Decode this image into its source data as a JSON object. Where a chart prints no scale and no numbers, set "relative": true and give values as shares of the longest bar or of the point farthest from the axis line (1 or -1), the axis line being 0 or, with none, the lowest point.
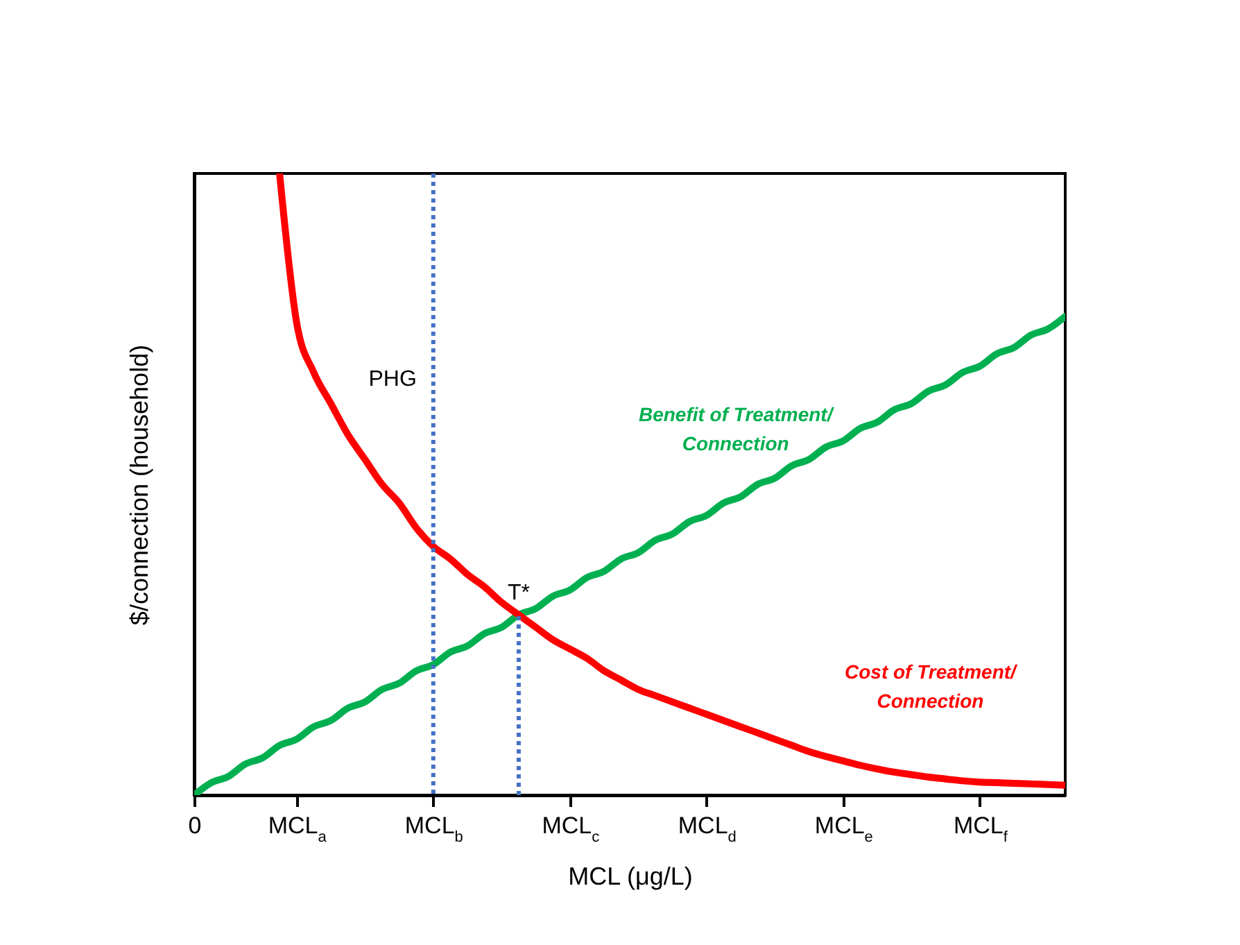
{
  "chart_data": {
    "type": "line",
    "relative": true,
    "xlabel": "MCL (μg/L)",
    "ylabel": "$/connection (household)",
    "categories": [
      "0",
      null,
      null,
      null,
      null,
      null,
      "MCL$_{a}$",
      null,
      null,
      null,
      null,
      null,
      null,
      null,
      "MCL$_{b}$",
      null,
      null,
      null,
      null,
      null,
      null,
      null,
      "MCL$_{c}$",
      null,
      null,
      null,
      null,
      null,
      null,
      null,
      "MCL$_{d}$",
      null,
      null,
      null,
      null,
      null,
      null,
      null,
      "MCL$_{e}$",
      null,
      null,
      null,
      null,
      null,
      null,
      null,
      "MCL$_{f}$",
      null,
      null,
      null,
      null,
      null
    ],
    "series": [
      {
        "name": "Benefit of Treatment/ Connection",
        "color": "#00b050",
        "values": [
          0,
          0.02,
          0.03,
          0.05,
          0.06,
          0.08,
          0.09,
          0.11,
          0.12,
          0.14,
          0.15,
          0.17,
          0.18,
          0.2,
          0.21,
          0.23,
          0.24,
          0.26,
          0.27,
          0.29,
          0.3,
          0.32,
          0.33,
          0.35,
          0.36,
          0.38,
          0.39,
          0.41,
          0.42,
          0.44,
          0.45,
          0.47,
          0.48,
          0.5,
          0.51,
          0.53,
          0.54,
          0.56,
          0.57,
          0.59,
          0.6,
          0.62,
          0.63,
          0.65,
          0.66,
          0.68,
          0.69,
          0.71,
          0.72,
          0.74,
          0.75,
          0.77
        ]
      },
      {
        "name": "Cost of Treatment/ Connection",
        "color": "#ff0000",
        "values": [
          null,
          null,
          null,
          null,
          null,
          1.0,
          0.76,
          0.68,
          0.63,
          0.58,
          0.54,
          0.5,
          0.47,
          0.43,
          0.4,
          0.38,
          0.355,
          0.335,
          0.31,
          0.29,
          0.27,
          0.25,
          0.235,
          0.22,
          0.2,
          0.185,
          0.17,
          0.16,
          0.15,
          0.14,
          0.13,
          0.12,
          0.11,
          0.1,
          0.09,
          0.08,
          0.07,
          0.062,
          0.055,
          0.048,
          0.042,
          0.037,
          0.033,
          0.029,
          0.026,
          0.023,
          0.021,
          0.02,
          0.019,
          0.018,
          0.017,
          0.016
        ]
      }
    ],
    "ref_lines": [
      {
        "axis": "x",
        "value": "MCL$_{b}$",
        "label": "PHG",
        "color": "#4472c4",
        "line_style": "dotted"
      }
    ],
    "annotations": [
      {
        "text": "T*",
        "y": 0.29
      }
    ],
    "grid": false,
    "legend": false
  }
}
